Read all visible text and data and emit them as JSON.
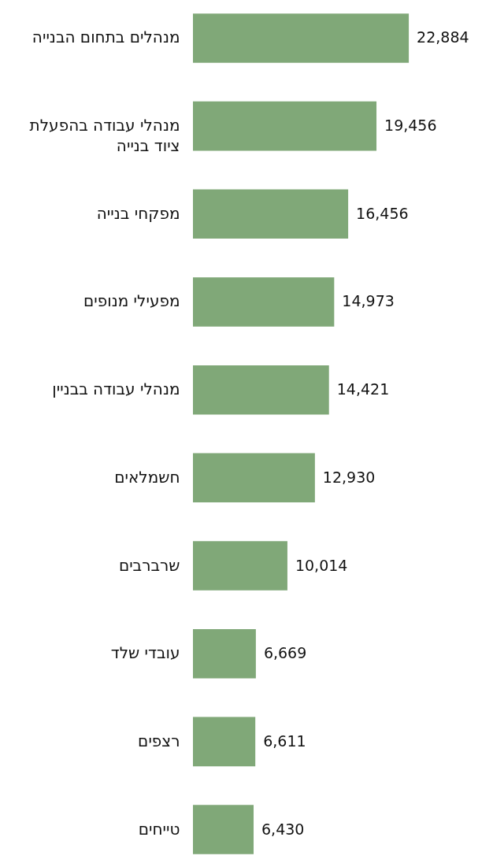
{
  "chart_data": {
    "type": "bar",
    "orientation": "horizontal",
    "value_labels": [
      "22,884",
      "19,456",
      "16,456",
      "14,973",
      "14,421",
      "12,930",
      "10,014",
      "6,669",
      "6,611",
      "6,430"
    ],
    "categories": [
      "מנהלים בתחום הבנייה",
      "מנהלי עבודה בהפעלת ציוד בנייה",
      "מפקחי בנייה",
      "מפעילי מנופים",
      "מנהלי עבודה בבניין",
      "חשמלאים",
      "שרברבים",
      "עובדי שלד",
      "רצפים",
      "טייחים"
    ],
    "values": [
      22884,
      19456,
      16456,
      14973,
      14421,
      12930,
      10014,
      6669,
      6611,
      6430
    ],
    "color": "#80a878"
  }
}
